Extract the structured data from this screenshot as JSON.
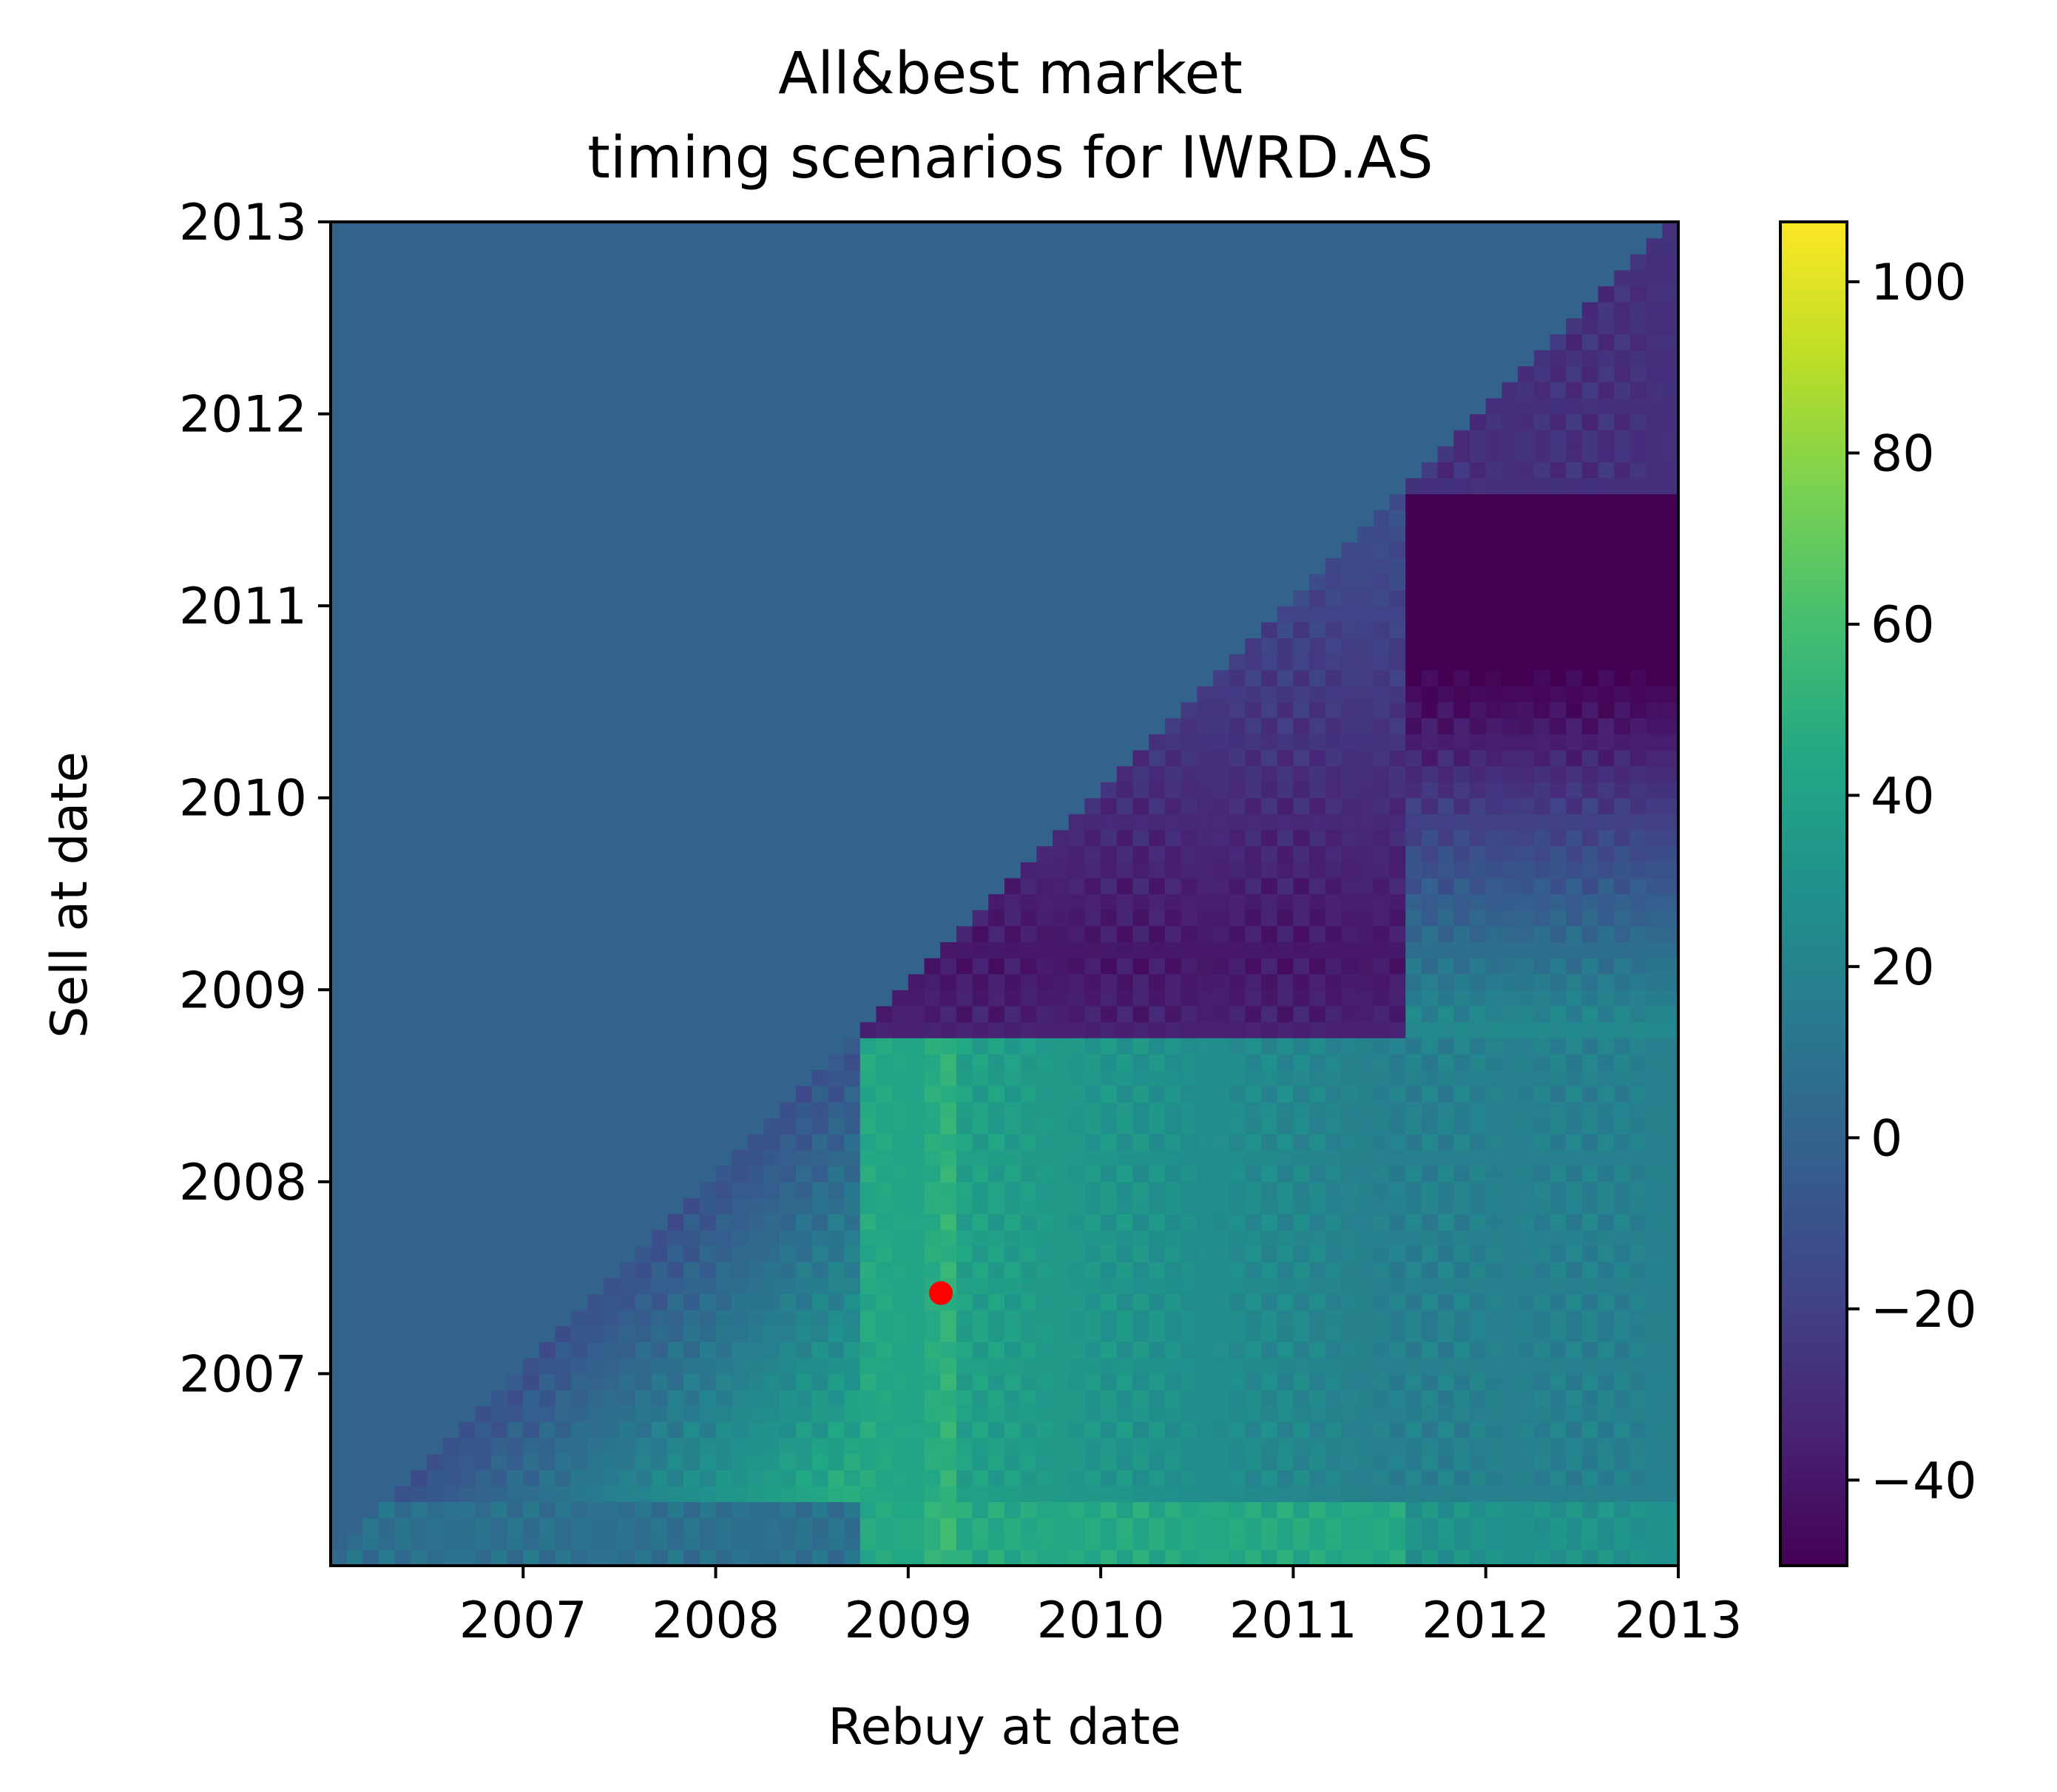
{
  "chart_data": {
    "type": "heatmap",
    "title_lines": [
      "All&best market",
      "timing scenarios for IWRD.AS"
    ],
    "xlabel": "Rebuy at date",
    "ylabel": "Sell at date",
    "xlim": [
      2006.0,
      2013.0
    ],
    "ylim": [
      2006.0,
      2013.0
    ],
    "x_ticks": [
      2007,
      2008,
      2009,
      2010,
      2011,
      2012,
      2013
    ],
    "y_ticks": [
      2007,
      2008,
      2009,
      2010,
      2011,
      2012,
      2013
    ],
    "x_tick_labels": [
      "2007",
      "2008",
      "2009",
      "2010",
      "2011",
      "2012",
      "2013"
    ],
    "y_tick_labels": [
      "2007",
      "2008",
      "2009",
      "2010",
      "2011",
      "2012",
      "2013"
    ],
    "colormap": "viridis",
    "colorbar": {
      "vmin": -50,
      "vmax": 107,
      "ticks": [
        -40,
        -20,
        0,
        20,
        40,
        60,
        80,
        100
      ],
      "tick_labels": [
        "−40",
        "−20",
        "0",
        "20",
        "40",
        "60",
        "80",
        "100"
      ]
    },
    "upper_triangle_value": 0,
    "regimes": {
      "rebuy_break_1": 2008.75,
      "rebuy_break_2": 2011.6,
      "sell_break_1": 2006.3,
      "sell_break_2": 2008.75,
      "sell_break_3": 2011.6,
      "crash_sell_center": 2009.17,
      "peak_rebuy": 2009.17
    },
    "best_point": {
      "rebuy": 2009.17,
      "sell": 2007.42,
      "color": "#ff0000"
    },
    "grid": false
  }
}
